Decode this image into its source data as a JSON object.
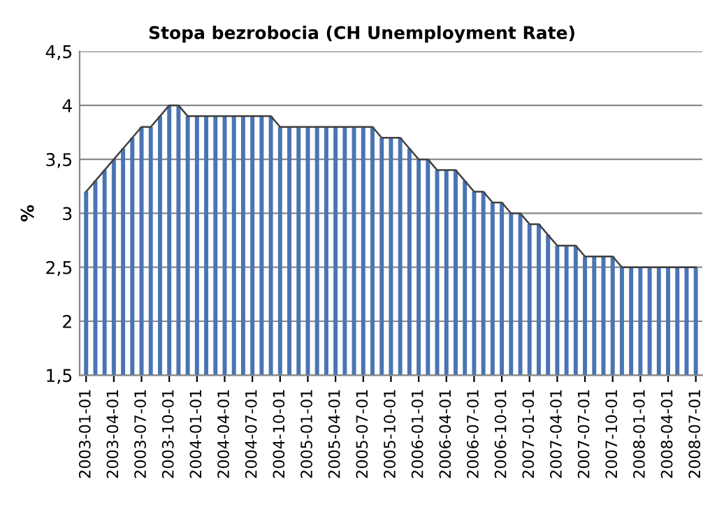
{
  "chart_data": {
    "type": "bar",
    "title": "Stopa bezrobocia (CH Unemployment Rate)",
    "ylabel": "%",
    "categories": [
      "2003-01-01",
      null,
      null,
      "2003-04-01",
      null,
      null,
      "2003-07-01",
      null,
      null,
      "2003-10-01",
      null,
      null,
      "2004-01-01",
      null,
      null,
      "2004-04-01",
      null,
      null,
      "2004-07-01",
      null,
      null,
      "2004-10-01",
      null,
      null,
      "2005-01-01",
      null,
      null,
      "2005-04-01",
      null,
      null,
      "2005-07-01",
      null,
      null,
      "2005-10-01",
      null,
      null,
      "2006-01-01",
      null,
      null,
      "2006-04-01",
      null,
      null,
      "2006-07-01",
      null,
      null,
      "2006-10-01",
      null,
      null,
      "2007-01-01",
      null,
      null,
      "2007-04-01",
      null,
      null,
      "2007-07-01",
      null,
      null,
      "2007-10-01",
      null,
      null,
      "2008-01-01",
      null,
      null,
      "2008-04-01",
      null,
      null,
      "2008-07-01"
    ],
    "series": [
      {
        "color": "#4a74b4",
        "values": [
          3.2,
          3.3,
          3.4,
          3.5,
          3.6,
          3.7,
          3.8,
          3.8,
          3.9,
          4.0,
          4.0,
          3.9,
          3.9,
          3.9,
          3.9,
          3.9,
          3.9,
          3.9,
          3.9,
          3.9,
          3.9,
          3.8,
          3.8,
          3.8,
          3.8,
          3.8,
          3.8,
          3.8,
          3.8,
          3.8,
          3.8,
          3.8,
          3.7,
          3.7,
          3.7,
          3.6,
          3.5,
          3.5,
          3.4,
          3.4,
          3.4,
          3.3,
          3.2,
          3.2,
          3.1,
          3.1,
          3.0,
          3.0,
          2.9,
          2.9,
          2.8,
          2.7,
          2.7,
          2.7,
          2.6,
          2.6,
          2.6,
          2.6,
          2.5,
          2.5,
          2.5,
          2.5,
          2.5,
          2.5,
          2.5,
          2.5,
          2.5
        ]
      },
      {
        "type": "line",
        "color": "#404040",
        "values": [
          3.2,
          3.3,
          3.4,
          3.5,
          3.6,
          3.7,
          3.8,
          3.8,
          3.9,
          4.0,
          4.0,
          3.9,
          3.9,
          3.9,
          3.9,
          3.9,
          3.9,
          3.9,
          3.9,
          3.9,
          3.9,
          3.8,
          3.8,
          3.8,
          3.8,
          3.8,
          3.8,
          3.8,
          3.8,
          3.8,
          3.8,
          3.8,
          3.7,
          3.7,
          3.7,
          3.6,
          3.5,
          3.5,
          3.4,
          3.4,
          3.4,
          3.3,
          3.2,
          3.2,
          3.1,
          3.1,
          3.0,
          3.0,
          2.9,
          2.9,
          2.8,
          2.7,
          2.7,
          2.7,
          2.6,
          2.6,
          2.6,
          2.6,
          2.5,
          2.5,
          2.5,
          2.5,
          2.5,
          2.5,
          2.5,
          2.5,
          2.5
        ]
      }
    ],
    "ylim": [
      1.5,
      4.5
    ],
    "yticks": [
      {
        "value": 1.5,
        "label": "1,5"
      },
      2,
      {
        "value": 2.5,
        "label": "2,5"
      },
      3,
      {
        "value": 3.5,
        "label": "3,5"
      },
      4,
      {
        "value": 4.5,
        "label": "4,5"
      }
    ],
    "grid": "y",
    "legend": false
  }
}
